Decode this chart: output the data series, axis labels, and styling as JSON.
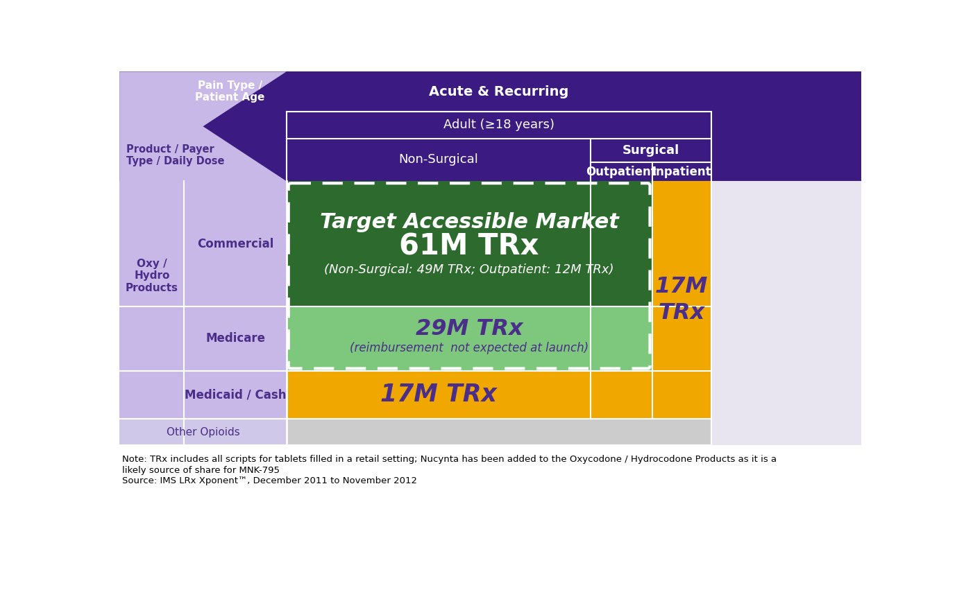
{
  "colors": {
    "dark_purple": "#3b1b82",
    "light_purple_bg": "#c8b8e8",
    "lighter_purple": "#d4c8f0",
    "dark_green": "#2d6a2d",
    "light_green": "#7ec87e",
    "gold": "#f0a800",
    "light_gray": "#cccccc",
    "white": "#ffffff",
    "black": "#000000",
    "text_purple": "#4b2d8a",
    "other_row_bg": "#d0c8e8"
  },
  "header_row1_right": "Acute & Recurring",
  "header_row1_left": "Pain Type /\nPatient Age",
  "header_row2": "Adult (≥18 years)",
  "header_nonsurgical": "Non-Surgical",
  "header_surgical": "Surgical",
  "header_outpatient": "Outpatient",
  "header_inpatient": "Inpatient",
  "left_header": "Product / Payer\nType / Daily Dose",
  "product_label": "Oxy /\nHydro\nProducts",
  "payer_labels": [
    "Commercial",
    "Medicare",
    "Medicaid / Cash"
  ],
  "other_label": "Other Opioids",
  "main_box_title": "Target Accessible Market",
  "main_box_value": "61M TRx",
  "main_box_sub": "(Non-Surgical: 49M TRx; Outpatient: 12M TRx)",
  "medicare_value": "29M TRx",
  "medicare_sub": "(reimbursement  not expected at launch)",
  "medicaid_value": "17M TRx",
  "inpatient_value": "17M\nTRx",
  "note_line1": "Note: TRx includes all scripts for tablets filled in a retail setting; Nucynta has been added to the Oxycodone / Hydrocodone Products as it is a",
  "note_line2": "likely source of share for MNK-795",
  "note_line3": "Source: IMS LRx Xponent™, December 2011 to November 2012"
}
